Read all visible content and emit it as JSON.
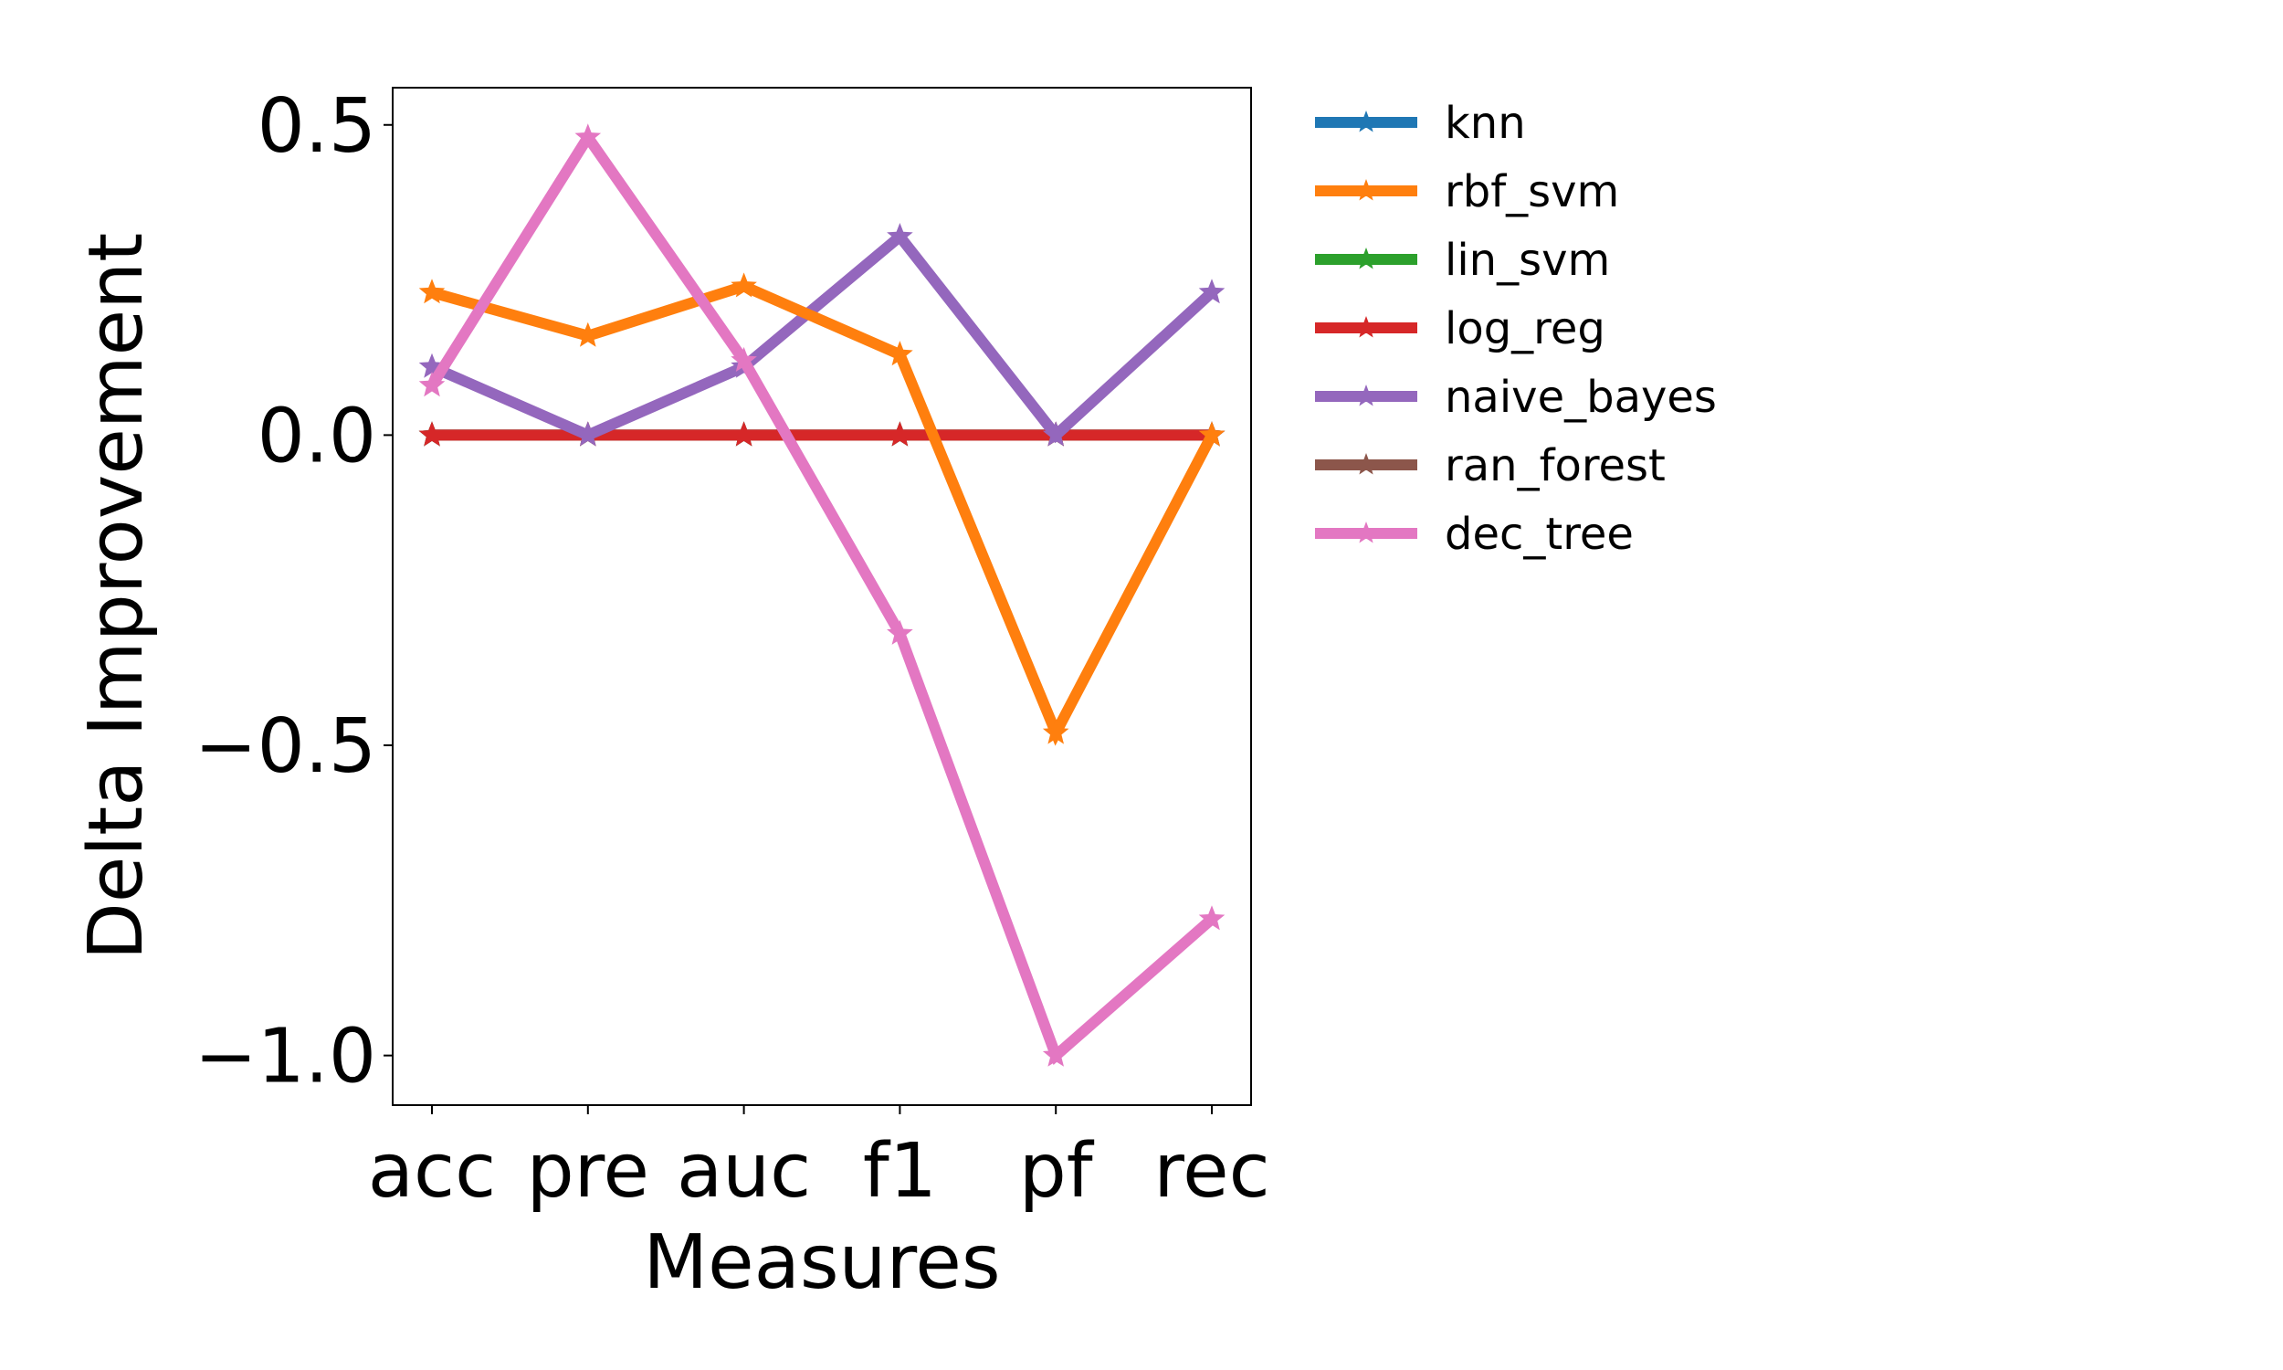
{
  "chart_data": {
    "type": "line",
    "title": "",
    "xlabel": "Measures",
    "ylabel": "Delta Improvement",
    "categories": [
      "acc",
      "pre",
      "auc",
      "f1",
      "pf",
      "rec"
    ],
    "ylim": [
      -1.08,
      0.56
    ],
    "yticks": [
      0.5,
      0.0,
      -0.5,
      -1.0
    ],
    "ytick_labels": [
      "0.5",
      "0.0",
      "−0.5",
      "−1.0"
    ],
    "grid": false,
    "legend_placement": "outside-right-top",
    "marker": "star",
    "series": [
      {
        "name": "knn",
        "color": "#1f77b4",
        "values": [
          0,
          0,
          0,
          0,
          0,
          0
        ]
      },
      {
        "name": "rbf_svm",
        "color": "#ff7f0e",
        "values": [
          0.23,
          0.16,
          0.24,
          0.13,
          -0.48,
          0.0
        ]
      },
      {
        "name": "lin_svm",
        "color": "#2ca02c",
        "values": [
          0,
          0,
          0,
          0,
          0,
          0
        ]
      },
      {
        "name": "log_reg",
        "color": "#d62728",
        "values": [
          0,
          0,
          0,
          0,
          0,
          0
        ]
      },
      {
        "name": "naive_bayes",
        "color": "#9467bd",
        "values": [
          0.11,
          0.0,
          0.11,
          0.32,
          0.0,
          0.23
        ]
      },
      {
        "name": "ran_forest",
        "color": "#8c564b",
        "values": [
          0,
          0,
          0,
          0,
          0,
          0
        ]
      },
      {
        "name": "dec_tree",
        "color": "#e377c2",
        "values": [
          0.08,
          0.48,
          0.12,
          -0.32,
          -1.0,
          -0.78
        ]
      }
    ],
    "draw_order": [
      "knn",
      "lin_svm",
      "ran_forest",
      "log_reg",
      "naive_bayes",
      "rbf_svm",
      "dec_tree"
    ]
  }
}
